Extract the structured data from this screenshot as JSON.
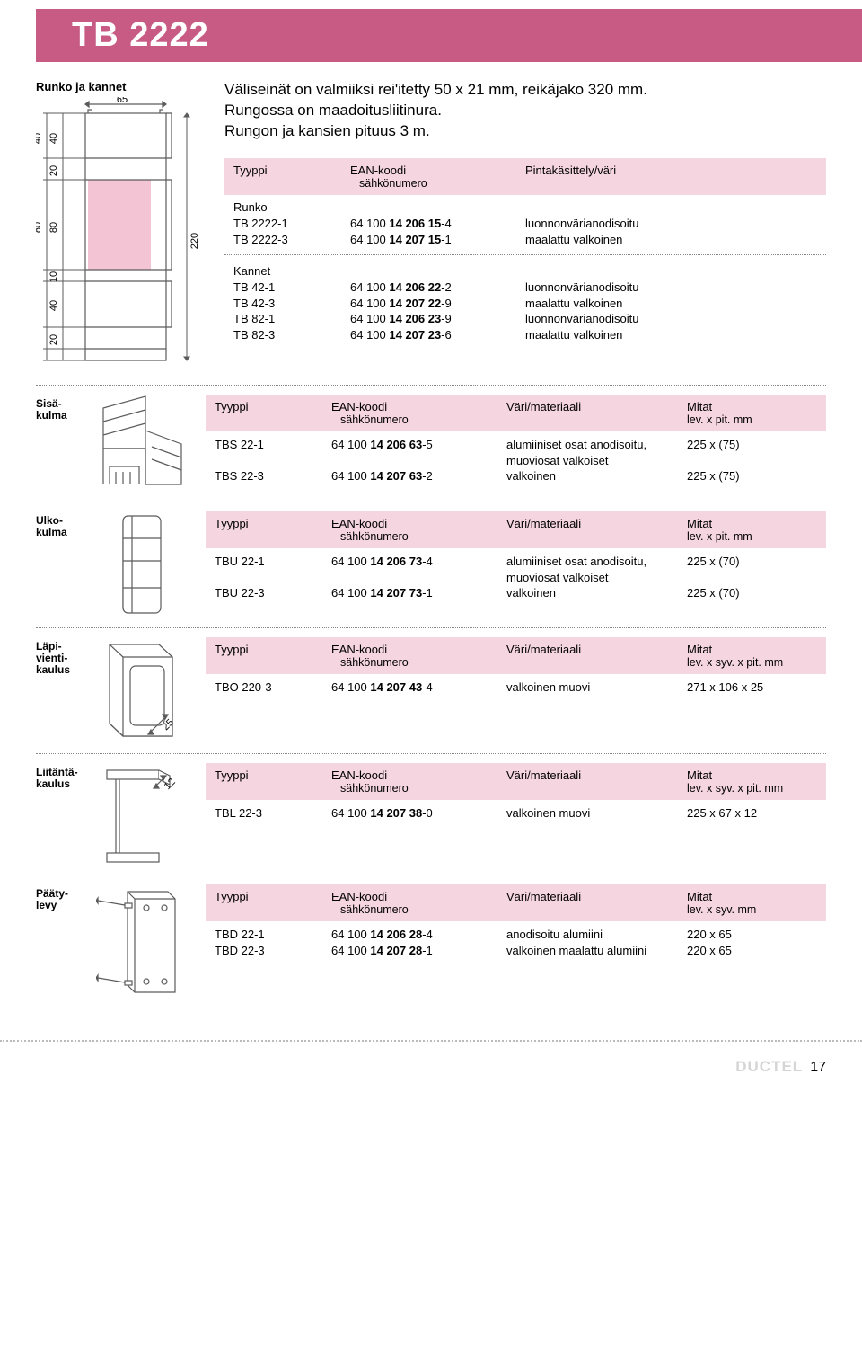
{
  "colors": {
    "title_bg": "#c75b84",
    "title_fg": "#ffffff",
    "pink_bg": "#f5d5e0",
    "dot": "#888888",
    "footer_brand": "#d5d5d5",
    "diagram_pink": "#f2c4d4",
    "diagram_stroke": "#5b5b5b"
  },
  "page_title": "TB 2222",
  "top": {
    "diagram_title": "Runko ja kannet",
    "intro": "Väliseinät on valmiiksi rei'itetty 50 x 21 mm, reikäjako 320 mm.\nRungossa on maadoitusliitinura.\nRungon ja kansien pituus 3 m.",
    "dims": {
      "w": "65",
      "h_total": "220",
      "h1": "40",
      "h2": "20",
      "h3": "80",
      "h4": "10",
      "h5": "40",
      "h6": "20",
      "h3b": "80",
      "h1b": "40"
    },
    "head": {
      "c1": "Tyyppi",
      "c2a": "EAN-koodi",
      "c2b": "sähkönumero",
      "c3": "Pintakäsittely/väri"
    },
    "runko": {
      "title": "Runko",
      "rows": [
        {
          "c1": "TB 2222-1",
          "c2a": "64 100 ",
          "c2b": "14 206 15",
          "c2c": "-4",
          "c3": "luonnonvärianodisoitu"
        },
        {
          "c1": "TB 2222-3",
          "c2a": "64 100 ",
          "c2b": "14 207 15",
          "c2c": "-1",
          "c3": "maalattu valkoinen"
        }
      ]
    },
    "kannet": {
      "title": "Kannet",
      "rows": [
        {
          "c1": "TB 42-1",
          "c2a": "64 100 ",
          "c2b": "14 206 22",
          "c2c": "-2",
          "c3": "luonnonvärianodisoitu"
        },
        {
          "c1": "TB 42-3",
          "c2a": "64 100 ",
          "c2b": "14 207 22",
          "c2c": "-9",
          "c3": "maalattu valkoinen"
        },
        {
          "c1": "TB 82-1",
          "c2a": "64 100 ",
          "c2b": "14 206 23",
          "c2c": "-9",
          "c3": "luonnonvärianodisoitu"
        },
        {
          "c1": "TB 82-3",
          "c2a": "64 100 ",
          "c2b": "14 207 23",
          "c2c": "-6",
          "c3": "maalattu valkoinen"
        }
      ]
    }
  },
  "head4": {
    "c1": "Tyyppi",
    "c2a": "EAN-koodi",
    "c2b": "sähkönumero",
    "c3": "Väri/materiaali",
    "c4a": "Mitat",
    "c4b": "lev. x pit. mm"
  },
  "head4b": {
    "c1": "Tyyppi",
    "c2a": "EAN-koodi",
    "c2b": "sähkönumero",
    "c3": "Väri/materiaali",
    "c4a": "Mitat",
    "c4b": "lev. x syv. x pit. mm"
  },
  "head4c": {
    "c1": "Tyyppi",
    "c2a": "EAN-koodi",
    "c2b": "sähkönumero",
    "c3": "Väri/materiaali",
    "c4a": "Mitat",
    "c4b": "lev. x syv. mm"
  },
  "sisa": {
    "label": "Sisä-\nkulma",
    "rows": [
      {
        "c1": "TBS 22-1",
        "c2a": "64 100 ",
        "c2b": "14 206 63",
        "c2c": "-5",
        "c3a": "alumiiniset osat anodisoitu,",
        "c3b": "muoviosat valkoiset",
        "c4": "225 x (75)"
      },
      {
        "c1": "TBS 22-3",
        "c2a": "64 100 ",
        "c2b": "14 207 63",
        "c2c": "-2",
        "c3a": "valkoinen",
        "c3b": "",
        "c4": "225 x (75)"
      }
    ]
  },
  "ulko": {
    "label": "Ulko-\nkulma",
    "rows": [
      {
        "c1": "TBU 22-1",
        "c2a": "64 100 ",
        "c2b": "14 206 73",
        "c2c": "-4",
        "c3a": "alumiiniset osat anodisoitu,",
        "c3b": "muoviosat valkoiset",
        "c4": "225 x (70)"
      },
      {
        "c1": "TBU 22-3",
        "c2a": "64 100 ",
        "c2b": "14 207 73",
        "c2c": "-1",
        "c3a": "valkoinen",
        "c3b": "",
        "c4": "225 x (70)"
      }
    ]
  },
  "lapi": {
    "label": "Läpi-\nvienti-\nkaulus",
    "dim": "25",
    "rows": [
      {
        "c1": "TBO 220-3",
        "c2a": "64 100 ",
        "c2b": "14 207 43",
        "c2c": "-4",
        "c3": "valkoinen muovi",
        "c4": "271 x 106 x 25"
      }
    ]
  },
  "liit": {
    "label": "Liitäntä-\nkaulus",
    "dim": "12",
    "rows": [
      {
        "c1": "TBL 22-3",
        "c2a": "64 100 ",
        "c2b": "14 207 38",
        "c2c": "-0",
        "c3": "valkoinen muovi",
        "c4": "225 x 67 x 12"
      }
    ]
  },
  "paaty": {
    "label": "Pääty-\nlevy",
    "rows": [
      {
        "c1": "TBD 22-1",
        "c2a": "64 100 ",
        "c2b": "14 206 28",
        "c2c": "-4",
        "c3": "anodisoitu alumiini",
        "c4": "220 x 65"
      },
      {
        "c1": "TBD 22-3",
        "c2a": "64 100 ",
        "c2b": "14 207 28",
        "c2c": "-1",
        "c3": "valkoinen maalattu alumiini",
        "c4": "220 x 65"
      }
    ]
  },
  "footer": {
    "brand": "DUCTEL",
    "page": "17"
  }
}
